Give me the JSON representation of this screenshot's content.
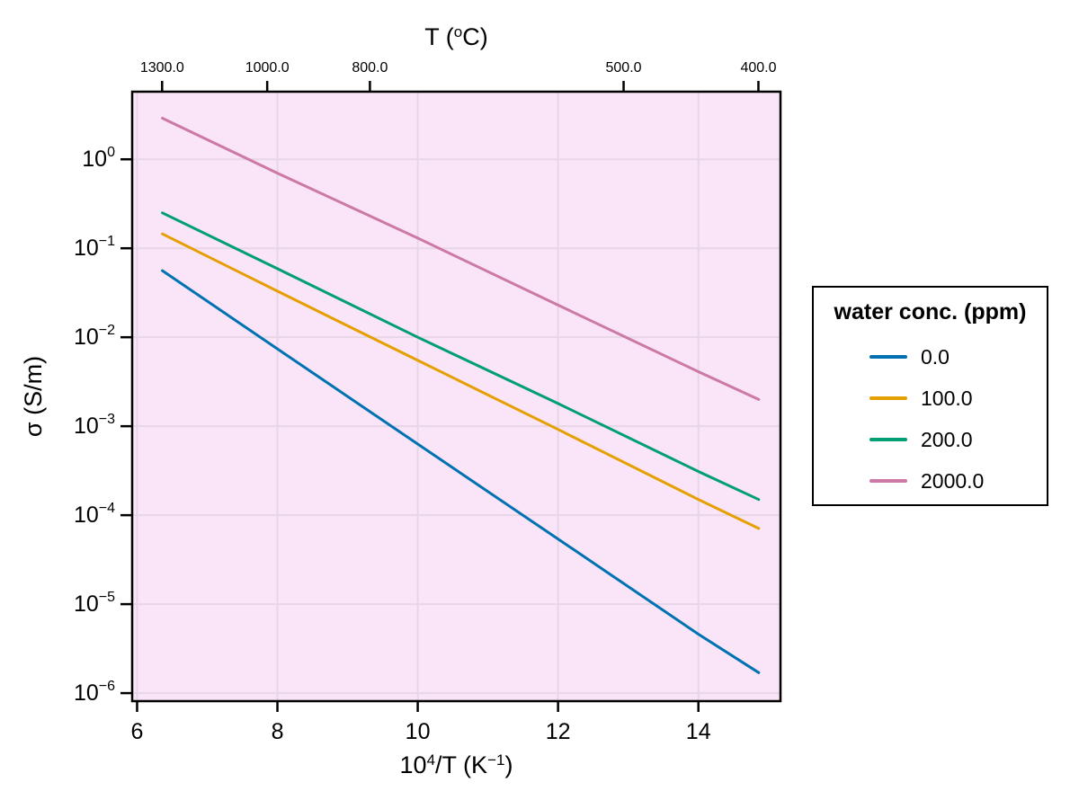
{
  "figure": {
    "background": "#ffffff",
    "plot_bg": "#fae4f7",
    "grid_color": "#e7d6e7",
    "spine_color": "#000000",
    "tick_color": "#000000"
  },
  "axis_labels": {
    "top": {
      "pre": "T (",
      "sup": "o",
      "post": "C)"
    },
    "bottom": {
      "pre": "10",
      "sup1": "4",
      "mid": "/T (K",
      "sup2": "−1",
      "post": ")"
    },
    "left": "σ (S/m)"
  },
  "legend": {
    "title": "water conc. (ppm)",
    "entries": [
      {
        "label": "0.0",
        "color": "#0072B2"
      },
      {
        "label": "100.0",
        "color": "#E69F00"
      },
      {
        "label": "200.0",
        "color": "#009E73"
      },
      {
        "label": "2000.0",
        "color": "#CC79A7"
      }
    ]
  },
  "chart_data": {
    "type": "line",
    "title": "",
    "xlabel": "10^4/T (K^-1)",
    "ylabel": "σ (S/m)",
    "top_axis_label": "T (°C)",
    "legend_title": "water conc. (ppm)",
    "legend_position": "right",
    "grid": true,
    "x_axis": {
      "lim": [
        5.93,
        15.17
      ],
      "ticks": [
        6,
        8,
        10,
        12,
        14
      ],
      "tick_labels": [
        "6",
        "8",
        "10",
        "12",
        "14"
      ]
    },
    "y_axis": {
      "scale": "log",
      "lim_log10": [
        -6.09,
        0.76
      ],
      "ticks_log10": [
        0,
        -1,
        -2,
        -3,
        -4,
        -5,
        -6
      ]
    },
    "top_axis": {
      "transform": "x = 10000 / (T_celsius + 273.15)",
      "ticks_celsius": [
        1300.0,
        1000.0,
        800.0,
        500.0,
        400.0
      ],
      "tick_labels": [
        "1300.0",
        "1000.0",
        "800.0",
        "500.0",
        "400.0"
      ]
    },
    "x": [
      6.36,
      8.0,
      10.0,
      12.0,
      14.0,
      14.86
    ],
    "series": [
      {
        "name": "0.0",
        "color": "#0072B2",
        "y": [
          0.056,
          0.0074,
          0.00063,
          5.4e-05,
          4.6e-06,
          1.7e-06
        ]
      },
      {
        "name": "100.0",
        "color": "#E69F00",
        "y": [
          0.145,
          0.033,
          0.0055,
          0.00092,
          0.00015,
          7.1e-05
        ]
      },
      {
        "name": "200.0",
        "color": "#009E73",
        "y": [
          0.25,
          0.059,
          0.01,
          0.0018,
          0.00031,
          0.00015
        ]
      },
      {
        "name": "2000.0",
        "color": "#CC79A7",
        "y": [
          2.9,
          0.7,
          0.13,
          0.023,
          0.0041,
          0.002
        ]
      }
    ]
  }
}
